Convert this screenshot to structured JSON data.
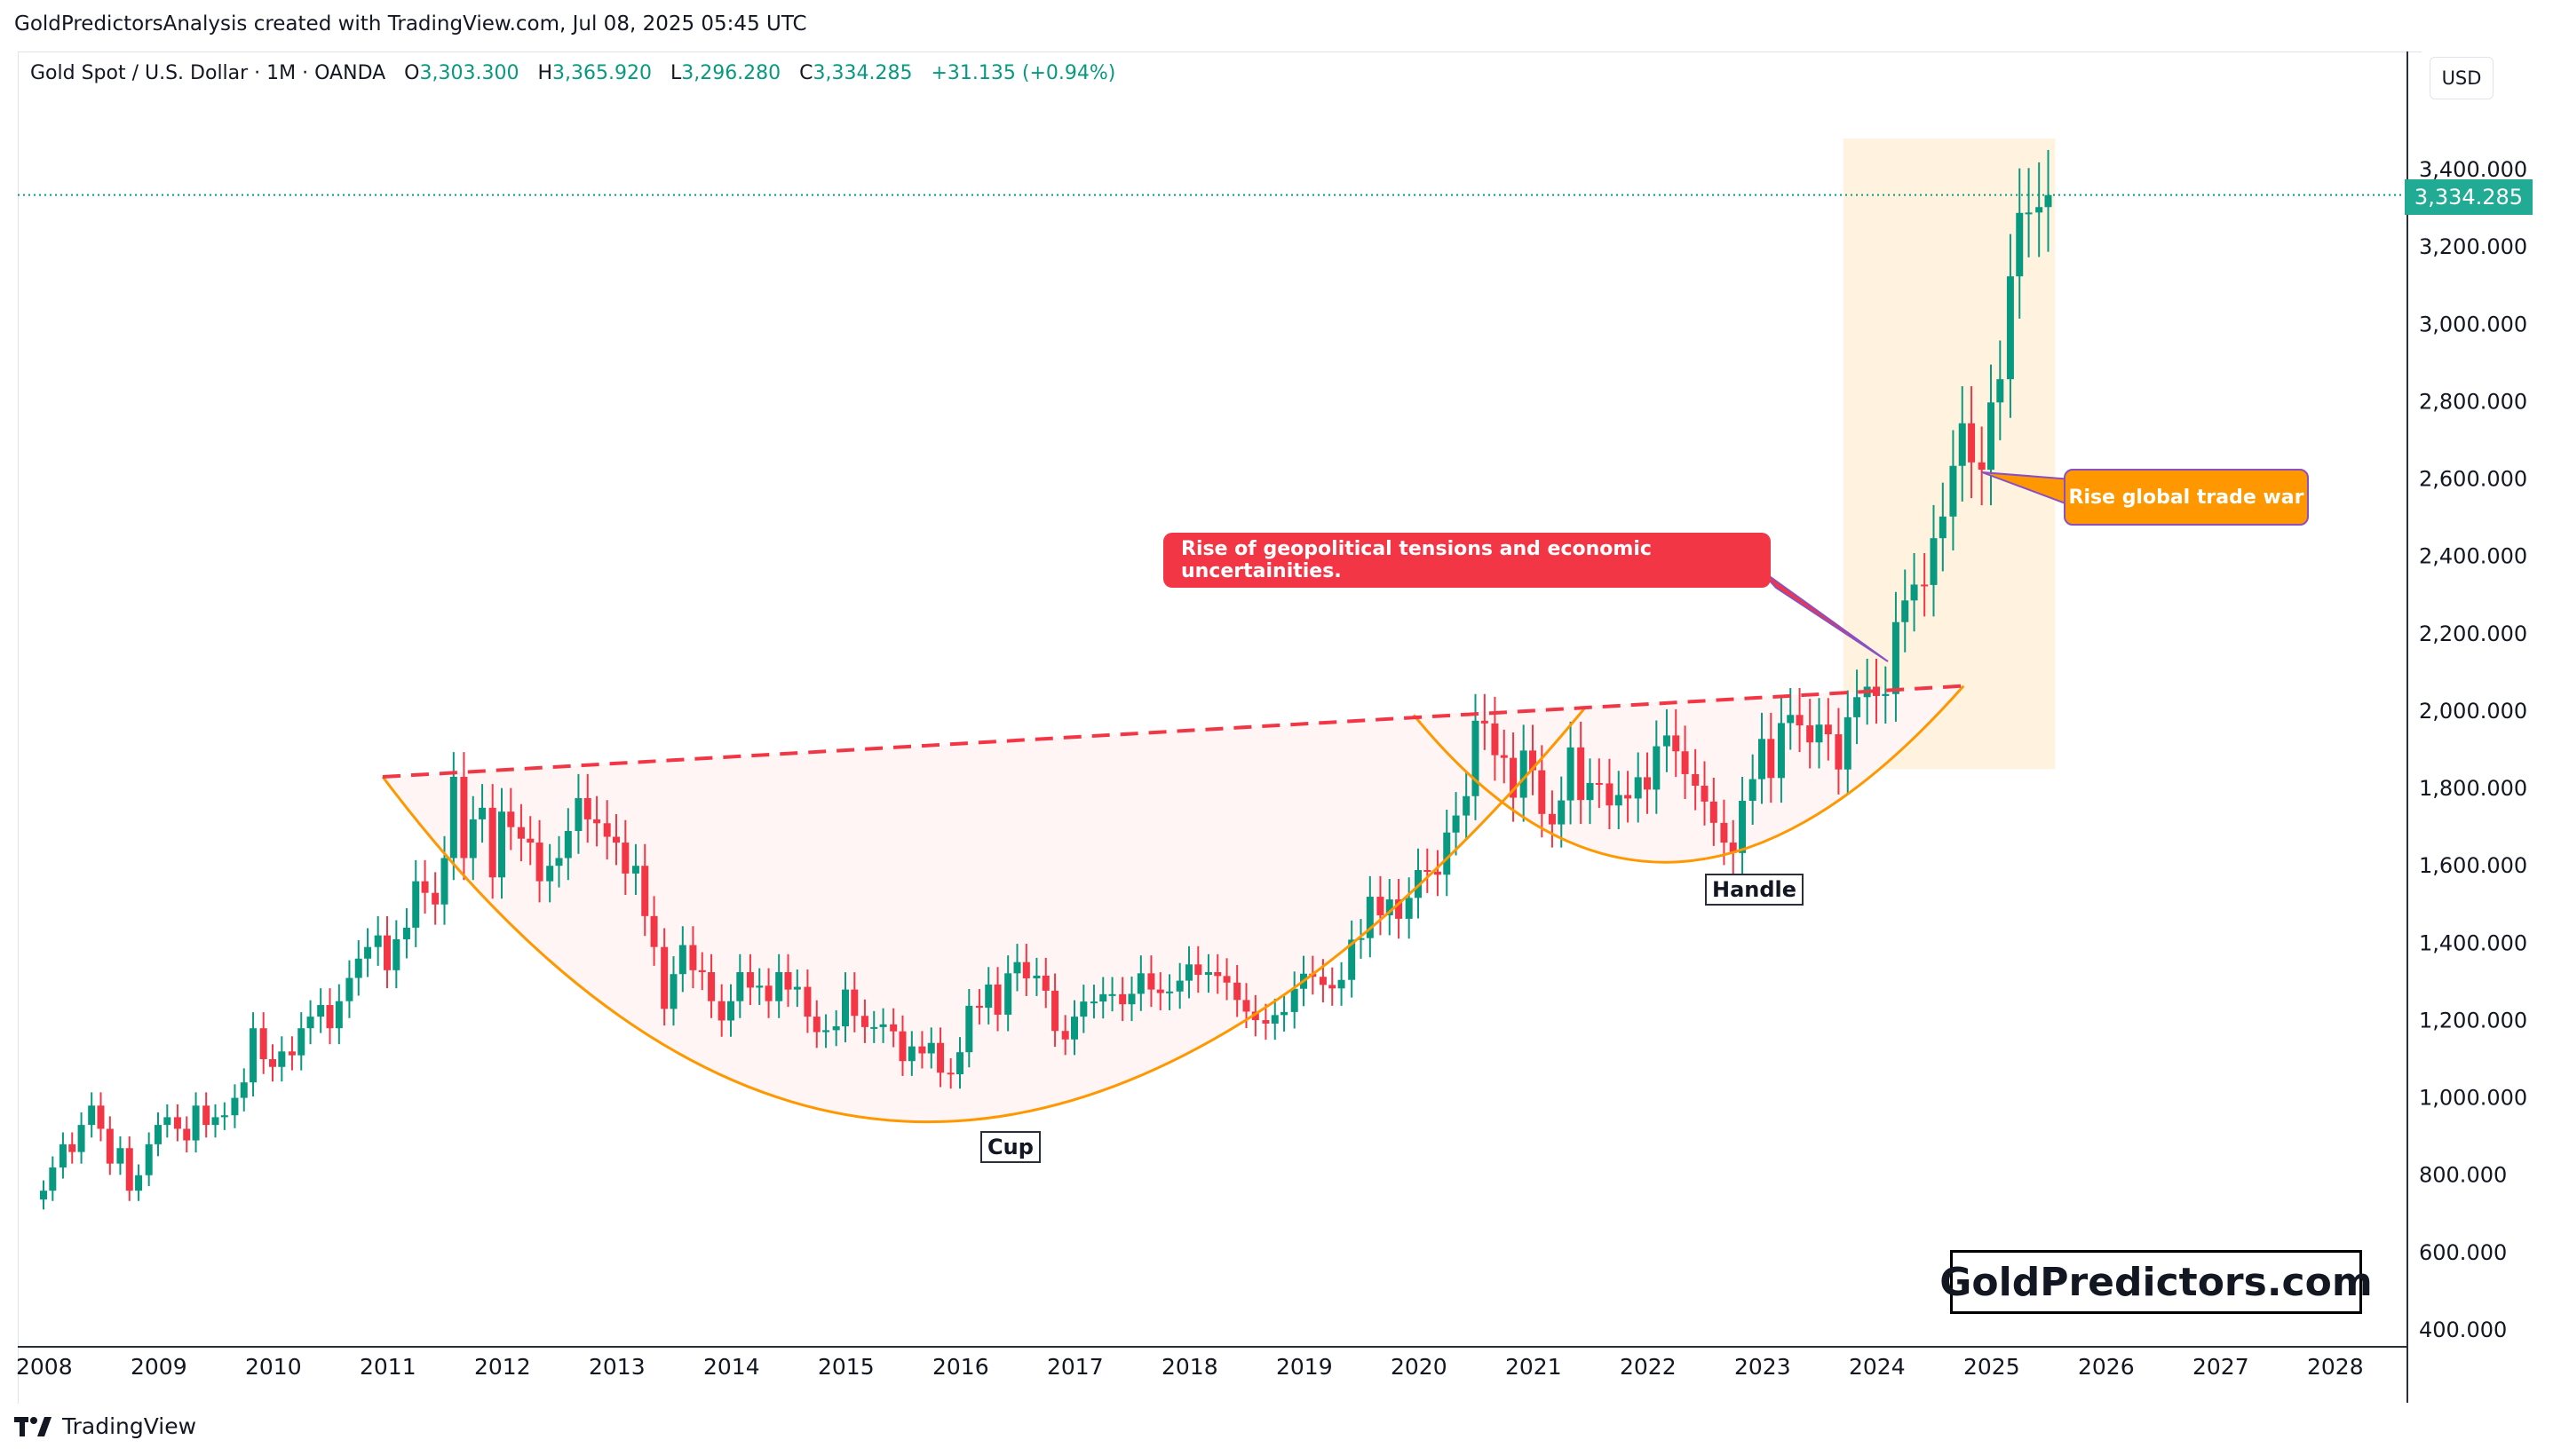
{
  "header": {
    "caption": "GoldPredictorsAnalysis created with TradingView.com, Jul 08, 2025 05:45 UTC",
    "symbol": "Gold Spot / U.S. Dollar · 1M · OANDA",
    "open_label": "O",
    "open": "3,303.300",
    "high_label": "H",
    "high": "3,365.920",
    "low_label": "L",
    "low": "3,296.280",
    "close_label": "C",
    "close": "3,334.285",
    "change": "+31.135 (+0.94%)"
  },
  "currency": "USD",
  "last_price_tag": "3,334.285",
  "footer": {
    "brand": "TradingView"
  },
  "annotations": {
    "geopolitics": "Rise of geopolitical tensions and economic uncertainities.",
    "trade_war": "Rise global trade war",
    "cup": "Cup",
    "handle": "Handle"
  },
  "watermark": "GoldPredictors.com",
  "colors": {
    "up": "#089981",
    "down": "#f23645",
    "neckline": "#f23645",
    "cup_curve": "#ff9800",
    "highlight_zone": "#fff3e0",
    "price_tag": "#22ab94"
  },
  "chart_data": {
    "type": "candlestick",
    "interval": "1M",
    "x_axis": {
      "labels": [
        "2008",
        "2009",
        "2010",
        "2011",
        "2012",
        "2013",
        "2014",
        "2015",
        "2016",
        "2017",
        "2018",
        "2019",
        "2020",
        "2021",
        "2022",
        "2023",
        "2024",
        "2025",
        "2026",
        "2027",
        "2028"
      ]
    },
    "y_axis": {
      "range": [
        400,
        3500
      ],
      "tick_values": [
        400,
        600,
        800,
        1000,
        1200,
        1400,
        1600,
        1800,
        2000,
        2200,
        2400,
        2600,
        2800,
        3000,
        3200,
        3400
      ],
      "tick_labels": [
        "400.000",
        "600.000",
        "800.000",
        "1,000.000",
        "1,200.000",
        "1,400.000",
        "1,600.000",
        "1,800.000",
        "2,000.000",
        "2,200.000",
        "2,400.000",
        "2,600.000",
        "2,800.000",
        "3,000.000",
        "3,200.000",
        "3,400.000"
      ]
    },
    "last_price": 3334.285,
    "neckline": {
      "from": [
        2011.0,
        1830
      ],
      "to": [
        2024.8,
        2065
      ]
    },
    "cup_curve": {
      "start": [
        2011.0,
        1830
      ],
      "bottom": [
        2016.0,
        940
      ],
      "end": [
        2021.5,
        2010
      ]
    },
    "handle_curve": {
      "start": [
        2020.0,
        1990
      ],
      "bottom": [
        2022.3,
        1610
      ],
      "end": [
        2024.8,
        2065
      ]
    },
    "highlight_zone": {
      "x": [
        2023.75,
        2025.6
      ],
      "y": [
        1850,
        3480
      ]
    },
    "closes": [
      [
        2008.0,
        760
      ],
      [
        2008.08,
        820
      ],
      [
        2008.17,
        880
      ],
      [
        2008.25,
        860
      ],
      [
        2008.33,
        930
      ],
      [
        2008.42,
        980
      ],
      [
        2008.5,
        920
      ],
      [
        2008.58,
        830
      ],
      [
        2008.67,
        870
      ],
      [
        2008.75,
        760
      ],
      [
        2008.83,
        800
      ],
      [
        2008.92,
        880
      ],
      [
        2009.0,
        930
      ],
      [
        2009.08,
        950
      ],
      [
        2009.17,
        920
      ],
      [
        2009.25,
        890
      ],
      [
        2009.33,
        980
      ],
      [
        2009.42,
        930
      ],
      [
        2009.5,
        950
      ],
      [
        2009.58,
        955
      ],
      [
        2009.67,
        1000
      ],
      [
        2009.75,
        1040
      ],
      [
        2009.83,
        1180
      ],
      [
        2009.92,
        1100
      ],
      [
        2010.0,
        1080
      ],
      [
        2010.08,
        1120
      ],
      [
        2010.17,
        1110
      ],
      [
        2010.25,
        1180
      ],
      [
        2010.33,
        1210
      ],
      [
        2010.42,
        1240
      ],
      [
        2010.5,
        1180
      ],
      [
        2010.58,
        1250
      ],
      [
        2010.67,
        1310
      ],
      [
        2010.75,
        1360
      ],
      [
        2010.83,
        1390
      ],
      [
        2010.92,
        1420
      ],
      [
        2011.0,
        1330
      ],
      [
        2011.08,
        1410
      ],
      [
        2011.17,
        1440
      ],
      [
        2011.25,
        1560
      ],
      [
        2011.33,
        1530
      ],
      [
        2011.42,
        1500
      ],
      [
        2011.5,
        1620
      ],
      [
        2011.58,
        1830
      ],
      [
        2011.67,
        1620
      ],
      [
        2011.75,
        1720
      ],
      [
        2011.83,
        1750
      ],
      [
        2011.92,
        1570
      ],
      [
        2012.0,
        1740
      ],
      [
        2012.08,
        1700
      ],
      [
        2012.17,
        1670
      ],
      [
        2012.25,
        1660
      ],
      [
        2012.33,
        1560
      ],
      [
        2012.42,
        1600
      ],
      [
        2012.5,
        1620
      ],
      [
        2012.58,
        1690
      ],
      [
        2012.67,
        1775
      ],
      [
        2012.75,
        1720
      ],
      [
        2012.83,
        1710
      ],
      [
        2012.92,
        1675
      ],
      [
        2013.0,
        1660
      ],
      [
        2013.08,
        1580
      ],
      [
        2013.17,
        1600
      ],
      [
        2013.25,
        1470
      ],
      [
        2013.33,
        1390
      ],
      [
        2013.42,
        1230
      ],
      [
        2013.5,
        1320
      ],
      [
        2013.58,
        1395
      ],
      [
        2013.67,
        1330
      ],
      [
        2013.75,
        1325
      ],
      [
        2013.83,
        1250
      ],
      [
        2013.92,
        1200
      ],
      [
        2014.0,
        1250
      ],
      [
        2014.08,
        1325
      ],
      [
        2014.17,
        1285
      ],
      [
        2014.25,
        1290
      ],
      [
        2014.33,
        1250
      ],
      [
        2014.42,
        1325
      ],
      [
        2014.5,
        1280
      ],
      [
        2014.58,
        1287
      ],
      [
        2014.67,
        1210
      ],
      [
        2014.75,
        1170
      ],
      [
        2014.83,
        1175
      ],
      [
        2014.92,
        1185
      ],
      [
        2015.0,
        1280
      ],
      [
        2015.08,
        1212
      ],
      [
        2015.17,
        1183
      ],
      [
        2015.25,
        1183
      ],
      [
        2015.33,
        1190
      ],
      [
        2015.42,
        1172
      ],
      [
        2015.5,
        1095
      ],
      [
        2015.58,
        1133
      ],
      [
        2015.67,
        1115
      ],
      [
        2015.75,
        1142
      ],
      [
        2015.83,
        1065
      ],
      [
        2015.92,
        1061
      ],
      [
        2016.0,
        1118
      ],
      [
        2016.08,
        1238
      ],
      [
        2016.17,
        1233
      ],
      [
        2016.25,
        1293
      ],
      [
        2016.33,
        1215
      ],
      [
        2016.42,
        1322
      ],
      [
        2016.5,
        1351
      ],
      [
        2016.58,
        1309
      ],
      [
        2016.67,
        1316
      ],
      [
        2016.75,
        1277
      ],
      [
        2016.83,
        1173
      ],
      [
        2016.92,
        1151
      ],
      [
        2017.0,
        1210
      ],
      [
        2017.08,
        1249
      ],
      [
        2017.17,
        1249
      ],
      [
        2017.25,
        1268
      ],
      [
        2017.33,
        1268
      ],
      [
        2017.42,
        1242
      ],
      [
        2017.5,
        1269
      ],
      [
        2017.58,
        1322
      ],
      [
        2017.67,
        1280
      ],
      [
        2017.75,
        1271
      ],
      [
        2017.83,
        1275
      ],
      [
        2017.92,
        1303
      ],
      [
        2018.0,
        1345
      ],
      [
        2018.08,
        1318
      ],
      [
        2018.17,
        1325
      ],
      [
        2018.25,
        1315
      ],
      [
        2018.33,
        1298
      ],
      [
        2018.42,
        1253
      ],
      [
        2018.5,
        1223
      ],
      [
        2018.58,
        1201
      ],
      [
        2018.67,
        1192
      ],
      [
        2018.75,
        1214
      ],
      [
        2018.83,
        1222
      ],
      [
        2018.92,
        1282
      ],
      [
        2019.0,
        1321
      ],
      [
        2019.08,
        1313
      ],
      [
        2019.17,
        1292
      ],
      [
        2019.25,
        1283
      ],
      [
        2019.33,
        1305
      ],
      [
        2019.42,
        1409
      ],
      [
        2019.5,
        1413
      ],
      [
        2019.58,
        1520
      ],
      [
        2019.67,
        1472
      ],
      [
        2019.75,
        1513
      ],
      [
        2019.83,
        1463
      ],
      [
        2019.92,
        1517
      ],
      [
        2020.0,
        1589
      ],
      [
        2020.08,
        1585
      ],
      [
        2020.17,
        1577
      ],
      [
        2020.25,
        1686
      ],
      [
        2020.33,
        1730
      ],
      [
        2020.42,
        1780
      ],
      [
        2020.5,
        1975
      ],
      [
        2020.58,
        1968
      ],
      [
        2020.67,
        1886
      ],
      [
        2020.75,
        1879
      ],
      [
        2020.83,
        1776
      ],
      [
        2020.92,
        1898
      ],
      [
        2021.0,
        1847
      ],
      [
        2021.08,
        1734
      ],
      [
        2021.17,
        1707
      ],
      [
        2021.25,
        1769
      ],
      [
        2021.33,
        1906
      ],
      [
        2021.42,
        1770
      ],
      [
        2021.5,
        1814
      ],
      [
        2021.58,
        1813
      ],
      [
        2021.67,
        1756
      ],
      [
        2021.75,
        1783
      ],
      [
        2021.83,
        1774
      ],
      [
        2021.92,
        1829
      ],
      [
        2022.0,
        1797
      ],
      [
        2022.08,
        1909
      ],
      [
        2022.17,
        1937
      ],
      [
        2022.25,
        1896
      ],
      [
        2022.33,
        1837
      ],
      [
        2022.42,
        1807
      ],
      [
        2022.5,
        1766
      ],
      [
        2022.58,
        1711
      ],
      [
        2022.67,
        1660
      ],
      [
        2022.75,
        1633
      ],
      [
        2022.83,
        1768
      ],
      [
        2022.92,
        1824
      ],
      [
        2023.0,
        1928
      ],
      [
        2023.08,
        1827
      ],
      [
        2023.17,
        1969
      ],
      [
        2023.25,
        1990
      ],
      [
        2023.33,
        1963
      ],
      [
        2023.42,
        1919
      ],
      [
        2023.5,
        1965
      ],
      [
        2023.58,
        1940
      ],
      [
        2023.67,
        1849
      ],
      [
        2023.75,
        1984
      ],
      [
        2023.83,
        2036
      ],
      [
        2023.92,
        2063
      ],
      [
        2024.0,
        2039
      ],
      [
        2024.08,
        2044
      ],
      [
        2024.17,
        2230
      ],
      [
        2024.25,
        2286
      ],
      [
        2024.33,
        2327
      ],
      [
        2024.42,
        2326
      ],
      [
        2024.5,
        2447
      ],
      [
        2024.58,
        2503
      ],
      [
        2024.67,
        2634
      ],
      [
        2024.75,
        2744
      ],
      [
        2024.83,
        2643
      ],
      [
        2024.92,
        2624
      ],
      [
        2025.0,
        2798
      ],
      [
        2025.08,
        2858
      ],
      [
        2025.17,
        3124
      ],
      [
        2025.25,
        3288
      ],
      [
        2025.33,
        3289
      ],
      [
        2025.42,
        3303
      ],
      [
        2025.5,
        3334
      ]
    ]
  }
}
